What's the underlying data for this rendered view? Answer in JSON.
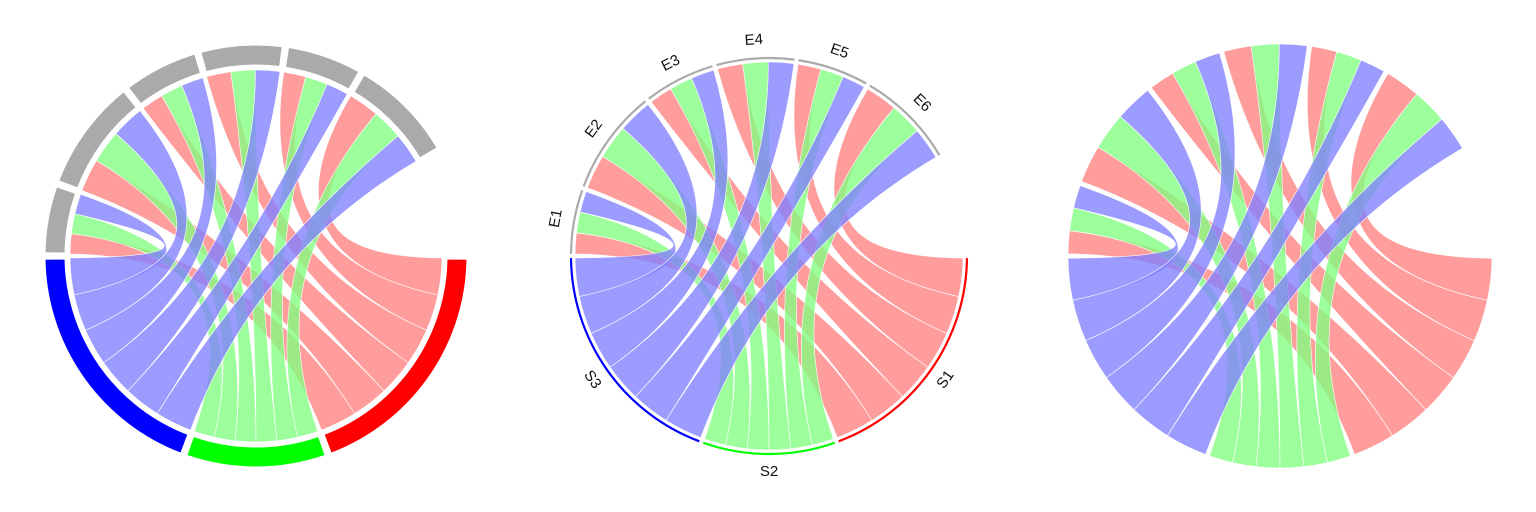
{
  "diagrams": [
    {
      "style": "filled-track",
      "show_labels": false
    },
    {
      "style": "line-track",
      "show_labels": true
    },
    {
      "style": "no-track",
      "show_labels": false
    }
  ],
  "sectors": [
    {
      "label": "S1",
      "color": "#ff0000"
    },
    {
      "label": "S2",
      "color": "#00ff00"
    },
    {
      "label": "S3",
      "color": "#0000ff"
    },
    {
      "label": "E1",
      "color": "#aaaaaa"
    },
    {
      "label": "E2",
      "color": "#aaaaaa"
    },
    {
      "label": "E3",
      "color": "#aaaaaa"
    },
    {
      "label": "E4",
      "color": "#aaaaaa"
    },
    {
      "label": "E5",
      "color": "#aaaaaa"
    },
    {
      "label": "E6",
      "color": "#aaaaaa"
    }
  ],
  "link_colors": {
    "S1": "#ff8080",
    "S2": "#80ff80",
    "S3": "#8080ff"
  }
}
